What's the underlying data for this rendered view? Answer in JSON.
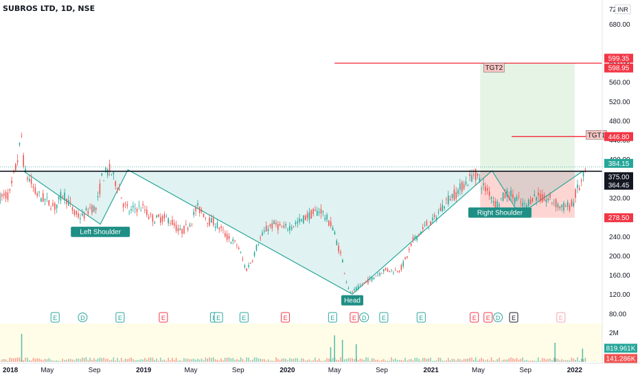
{
  "chart_data": {
    "type": "line",
    "title": "SUBROS LTD, 1D, NSE",
    "currency": "INR",
    "y_axis_label_top": "72",
    "price_axis": {
      "ylim": [
        62,
        730
      ],
      "ticks": [
        80,
        120,
        160,
        200,
        240,
        280,
        320,
        400,
        440,
        480,
        520,
        560,
        680
      ],
      "tick_labels": [
        "80.00",
        "120.00",
        "160.00",
        "200.00",
        "240.00",
        "280.00",
        "320.00",
        "400.00",
        "440.00",
        "480.00",
        "520.00",
        "560.00",
        "680.00"
      ],
      "partial_ticks": [
        {
          "value": 600,
          "label": "600.00"
        },
        {
          "value": 360,
          "label": "360.00"
        }
      ]
    },
    "time_axis": {
      "labels": [
        "2018",
        "May",
        "Sep",
        "2019",
        "May",
        "Sep",
        "2020",
        "May",
        "Sep",
        "2021",
        "May",
        "Sep",
        "2022"
      ],
      "bold": [
        "2018",
        "2019",
        "2020",
        "2021",
        "2022"
      ]
    },
    "x_range_index": [
      0,
      1530
    ],
    "label_index": [
      0,
      120,
      240,
      365,
      485,
      605,
      730,
      850,
      970,
      1095,
      1215,
      1335,
      1460
    ],
    "price_path": [
      [
        0,
        320
      ],
      [
        25,
        328
      ],
      [
        45,
        400
      ],
      [
        55,
        448
      ],
      [
        62,
        372
      ],
      [
        75,
        358
      ],
      [
        90,
        330
      ],
      [
        110,
        318
      ],
      [
        140,
        300
      ],
      [
        160,
        330
      ],
      [
        175,
        310
      ],
      [
        190,
        285
      ],
      [
        210,
        280
      ],
      [
        230,
        300
      ],
      [
        245,
        296
      ],
      [
        258,
        360
      ],
      [
        270,
        372
      ],
      [
        280,
        378
      ],
      [
        290,
        358
      ],
      [
        300,
        345
      ],
      [
        315,
        305
      ],
      [
        330,
        290
      ],
      [
        345,
        300
      ],
      [
        365,
        298
      ],
      [
        380,
        280
      ],
      [
        395,
        275
      ],
      [
        410,
        278
      ],
      [
        430,
        275
      ],
      [
        445,
        262
      ],
      [
        455,
        248
      ],
      [
        470,
        255
      ],
      [
        485,
        270
      ],
      [
        500,
        300
      ],
      [
        515,
        290
      ],
      [
        530,
        272
      ],
      [
        545,
        268
      ],
      [
        560,
        256
      ],
      [
        575,
        240
      ],
      [
        590,
        230
      ],
      [
        605,
        220
      ],
      [
        615,
        195
      ],
      [
        625,
        170
      ],
      [
        640,
        190
      ],
      [
        655,
        225
      ],
      [
        665,
        240
      ],
      [
        680,
        258
      ],
      [
        700,
        265
      ],
      [
        720,
        255
      ],
      [
        740,
        262
      ],
      [
        760,
        270
      ],
      [
        780,
        282
      ],
      [
        800,
        288
      ],
      [
        815,
        295
      ],
      [
        825,
        282
      ],
      [
        835,
        270
      ],
      [
        845,
        260
      ],
      [
        855,
        230
      ],
      [
        870,
        190
      ],
      [
        880,
        150
      ],
      [
        890,
        122
      ],
      [
        905,
        130
      ],
      [
        920,
        140
      ],
      [
        940,
        150
      ],
      [
        960,
        162
      ],
      [
        975,
        170
      ],
      [
        990,
        170
      ],
      [
        1005,
        168
      ],
      [
        1020,
        175
      ],
      [
        1035,
        200
      ],
      [
        1050,
        232
      ],
      [
        1070,
        250
      ],
      [
        1085,
        265
      ],
      [
        1100,
        270
      ],
      [
        1115,
        290
      ],
      [
        1130,
        310
      ],
      [
        1145,
        322
      ],
      [
        1160,
        330
      ],
      [
        1175,
        345
      ],
      [
        1190,
        355
      ],
      [
        1205,
        372
      ],
      [
        1215,
        360
      ],
      [
        1230,
        340
      ],
      [
        1245,
        330
      ],
      [
        1260,
        305
      ],
      [
        1275,
        318
      ],
      [
        1290,
        330
      ],
      [
        1305,
        322
      ],
      [
        1320,
        312
      ],
      [
        1335,
        300
      ],
      [
        1350,
        320
      ],
      [
        1365,
        325
      ],
      [
        1380,
        315
      ],
      [
        1395,
        318
      ],
      [
        1410,
        310
      ],
      [
        1425,
        300
      ],
      [
        1440,
        302
      ],
      [
        1455,
        305
      ],
      [
        1465,
        335
      ],
      [
        1475,
        345
      ],
      [
        1485,
        370
      ],
      [
        1492,
        384
      ]
    ],
    "lines": [
      {
        "name": "resistance",
        "value": 375,
        "color": "#131722"
      },
      {
        "name": "last-close-dotted",
        "value": 384.15,
        "color": "#26a69a"
      }
    ],
    "annotations": [
      {
        "label": "Left Shoulder",
        "index": 255,
        "value": 250
      },
      {
        "label": "Head",
        "index": 895,
        "value": 108
      },
      {
        "label": "Right Shoulder",
        "index": 1270,
        "value": 290
      }
    ],
    "pattern_lines": [
      [
        [
          60,
          375
        ],
        [
          255,
          265
        ],
        [
          325,
          378
        ],
        [
          895,
          120
        ],
        [
          1250,
          376
        ],
        [
          1320,
          285
        ],
        [
          1482,
          376
        ]
      ]
    ],
    "zones": [
      {
        "name": "profit",
        "x0": 1220,
        "x1": 1460,
        "y0": 375,
        "y1": 599.35,
        "color": "rgba(76,175,80,0.14)"
      },
      {
        "name": "loss",
        "x0": 1220,
        "x1": 1460,
        "y0": 278.5,
        "y1": 375,
        "color": "rgba(244,67,54,0.22)"
      }
    ],
    "targets": [
      {
        "label": "TGT2",
        "value": 598.95,
        "x0": 850,
        "label_index": 1255
      },
      {
        "label": "TGT1",
        "value": 446.8,
        "x0": 1300,
        "label_index": 1515
      }
    ],
    "price_tags": [
      {
        "text": "599.35",
        "value": 599.35,
        "bg": "#f23645",
        "fg": "#ffffff",
        "dy": -7
      },
      {
        "text": "598.95",
        "value": 598.95,
        "bg": "#f23645",
        "fg": "#ffffff",
        "dy": 7
      },
      {
        "text": "446.80",
        "value": 446.8,
        "bg": "#f23645",
        "fg": "#ffffff",
        "dy": 0
      },
      {
        "text": "384.15",
        "value": 384.15,
        "bg": "#26a69a",
        "fg": "#ffffff",
        "dy": -5
      },
      {
        "text": "375.00",
        "value": 375.0,
        "bg": "#131722",
        "fg": "#ffffff",
        "dy": 8
      },
      {
        "text": "364.45",
        "value": 364.45,
        "bg": "#131722",
        "fg": "#ffffff",
        "dy": 13
      },
      {
        "text": "278.50",
        "value": 278.5,
        "bg": "#f23645",
        "fg": "#ffffff",
        "dy": 0
      }
    ],
    "events": [
      {
        "type": "E",
        "index": 140,
        "color": "#26a69a"
      },
      {
        "type": "D",
        "index": 210,
        "color": "#26a69a"
      },
      {
        "type": "E",
        "index": 305,
        "color": "#26a69a"
      },
      {
        "type": "E",
        "index": 415,
        "color": "#f23645"
      },
      {
        "type": "E",
        "index": 545,
        "color": "#26a69a"
      },
      {
        "type": "E",
        "index": 555,
        "color": "#26a69a"
      },
      {
        "type": "E",
        "index": 620,
        "color": "#26a69a"
      },
      {
        "type": "E",
        "index": 725,
        "color": "#f23645"
      },
      {
        "type": "E",
        "index": 845,
        "color": "#26a69a"
      },
      {
        "type": "E",
        "index": 900,
        "color": "#f23645"
      },
      {
        "type": "D",
        "index": 925,
        "color": "#26a69a"
      },
      {
        "type": "E",
        "index": 975,
        "color": "#26a69a"
      },
      {
        "type": "E",
        "index": 1070,
        "color": "#26a69a"
      },
      {
        "type": "E",
        "index": 1205,
        "color": "#f23645"
      },
      {
        "type": "E",
        "index": 1240,
        "color": "#f23645"
      },
      {
        "type": "D",
        "index": 1265,
        "color": "#26a69a"
      },
      {
        "type": "E",
        "index": 1305,
        "color": "#131722"
      },
      {
        "type": "E",
        "index": 1425,
        "color": "#f2a3a8"
      }
    ],
    "volume": {
      "labels": [
        {
          "text": "2M",
          "level": 2000
        }
      ],
      "tags": [
        {
          "text": "819.961K",
          "value": 819.961,
          "bg": "#26a69a",
          "fg": "#ffffff"
        },
        {
          "text": "141.286K",
          "value": 141.286,
          "bg": "#ef5350",
          "fg": "#ffffff"
        }
      ],
      "spikes": [
        [
          55,
          1900
        ],
        [
          850,
          1800
        ],
        [
          870,
          1500
        ],
        [
          840,
          1000
        ],
        [
          905,
          1200
        ],
        [
          1410,
          1300
        ],
        [
          1480,
          900
        ]
      ]
    },
    "colors": {
      "up": "#26a69a",
      "down": "#ef5350",
      "pattern": "#26a69a",
      "target": "#f23645"
    }
  }
}
